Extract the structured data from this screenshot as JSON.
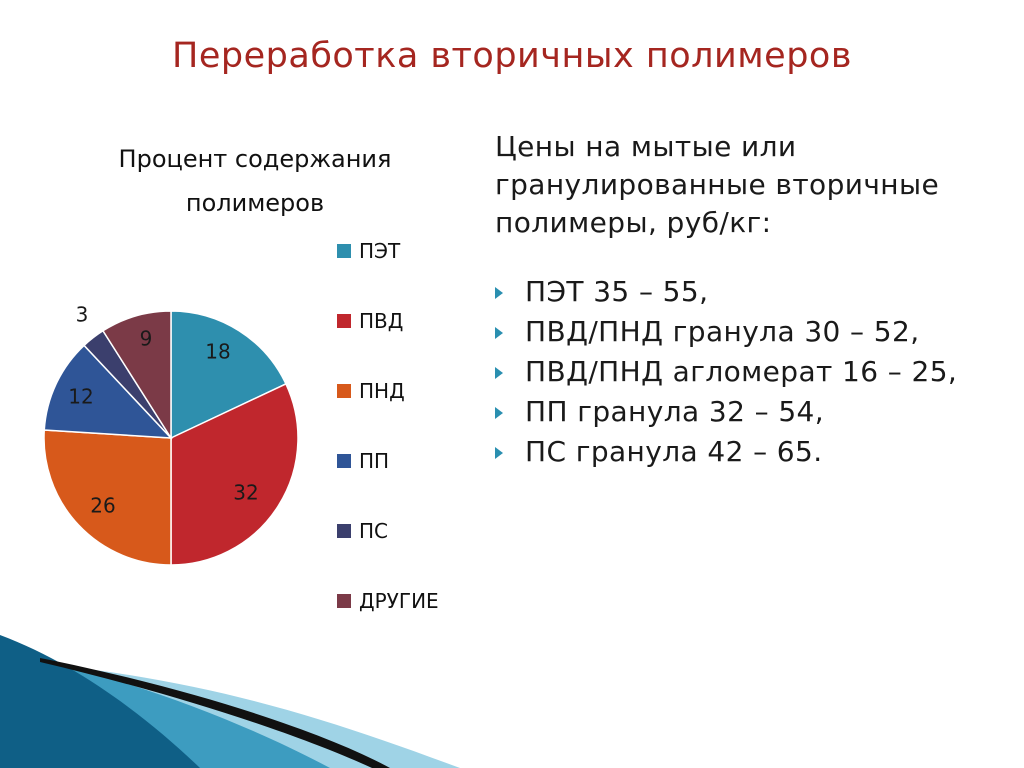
{
  "slide": {
    "title": "Переработка вторичных полимеров"
  },
  "chart_data": {
    "type": "pie",
    "title": "Процент содержания полимеров",
    "categories": [
      "ПЭТ",
      "ПВД",
      "ПНД",
      "ПП",
      "ПС",
      "ДРУГИЕ"
    ],
    "values": [
      18,
      32,
      26,
      12,
      3,
      9
    ],
    "colors": [
      "#2e8fae",
      "#c0272d",
      "#d7591b",
      "#2f5597",
      "#3b3f6d",
      "#7b3a47"
    ],
    "legend_position": "right",
    "data_labels": true
  },
  "prices": {
    "heading": "Цены на мытые или гранулированные вторичные полимеры, руб/кг:",
    "items": [
      "ПЭТ 35 – 55,",
      "ПВД/ПНД  гранула 30 – 52,",
      "ПВД/ПНД  агломерат 16 – 25,",
      "ПП гранула 32 – 54,",
      "ПС гранула 42 – 65."
    ],
    "bullet_color": "#2a8fb0"
  },
  "decor": {
    "light_blue": "#9fd3e6",
    "mid_blue": "#3d9cc0",
    "dark_blue": "#0f5f86",
    "black": "#111111"
  }
}
